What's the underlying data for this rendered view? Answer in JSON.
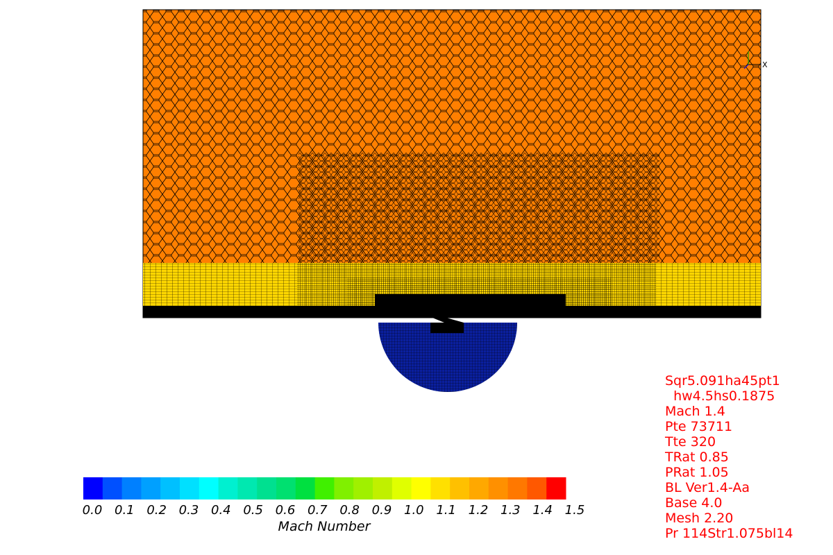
{
  "colors": {
    "background": "#ffffff",
    "mesh_fill": "#ff7f00",
    "mesh_edge": "#000000",
    "boundary_layer_fill": "#ffd700",
    "wall": "#000000",
    "plenum_fill": "#0a1f9e",
    "annotation_text": "#ff0000"
  },
  "axis_triad": {
    "x_label": "X"
  },
  "legend": {
    "title": "Mach Number",
    "colors": [
      "#0000ff",
      "#0050ff",
      "#0080ff",
      "#00a0ff",
      "#00c0ff",
      "#00e0ff",
      "#00ffff",
      "#00f0d0",
      "#00e8b0",
      "#00e090",
      "#00e070",
      "#00e040",
      "#40f000",
      "#80f000",
      "#a0f000",
      "#c0f000",
      "#e0ff00",
      "#ffff00",
      "#ffe000",
      "#ffc000",
      "#ffa800",
      "#ff9000",
      "#ff7800",
      "#ff5800",
      "#ff0000"
    ],
    "ticks": [
      "0.0",
      "0.1",
      "0.2",
      "0.3",
      "0.4",
      "0.5",
      "0.6",
      "0.7",
      "0.8",
      "0.9",
      "1.0",
      "1.1",
      "1.2",
      "1.3",
      "1.4",
      "1.5"
    ]
  },
  "annotations": [
    "Sqr5.091ha45pt1",
    "  hw4.5hs0.1875",
    "Mach 1.4",
    "Pte 73711",
    "Tte 320",
    "TRat 0.85",
    "PRat 1.05",
    "BL Ver1.4-Aa",
    "Base 4.0",
    "Mesh 2.20",
    "Pr 114Str1.075bl14"
  ]
}
